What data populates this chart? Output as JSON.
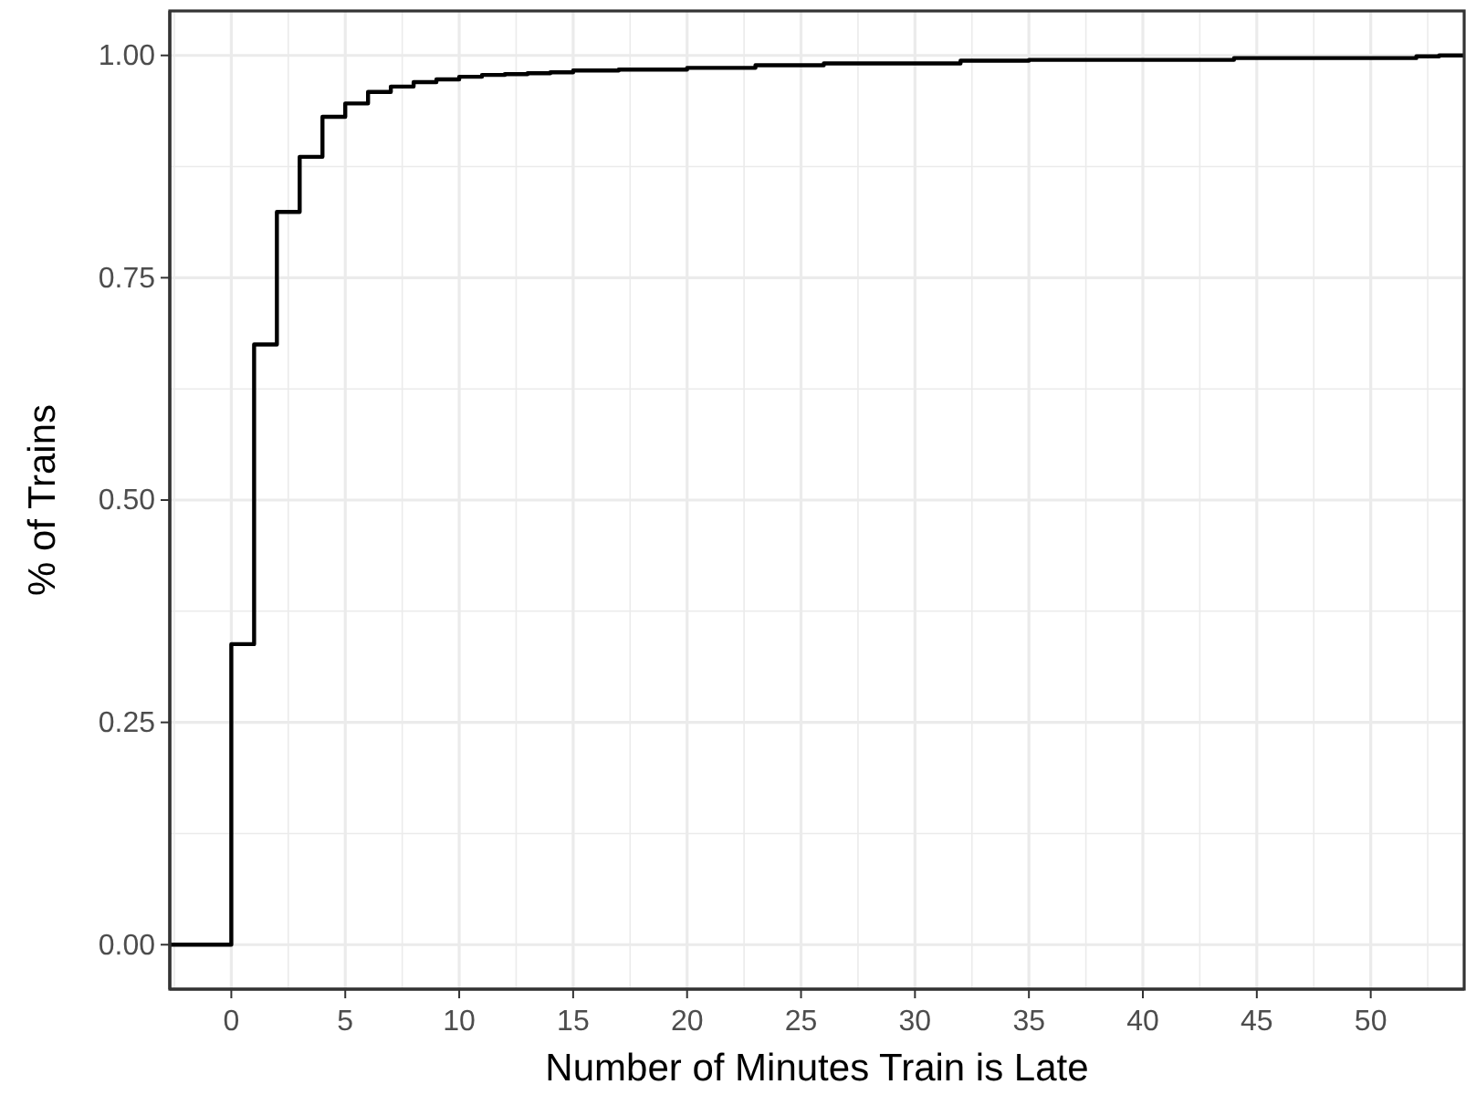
{
  "chart_data": {
    "type": "step",
    "xlabel": "Number of Minutes Train is Late",
    "ylabel": "% of Trains",
    "x": [
      -2.7,
      0,
      1,
      2,
      3,
      4,
      5,
      6,
      7,
      8,
      9,
      10,
      11,
      12,
      13,
      14,
      15,
      17,
      20,
      23,
      26,
      32,
      35,
      44,
      52,
      53,
      54.1
    ],
    "series": [
      {
        "color": "#000000",
        "values": [
          0,
          0.338,
          0.675,
          0.824,
          0.886,
          0.931,
          0.946,
          0.959,
          0.965,
          0.97,
          0.973,
          0.976,
          0.978,
          0.979,
          0.98,
          0.981,
          0.983,
          0.984,
          0.986,
          0.989,
          0.991,
          0.994,
          0.995,
          0.997,
          0.999,
          1.0,
          1.0
        ]
      }
    ],
    "xlim": [
      -2.7,
      54.1
    ],
    "xticks": [
      0,
      5,
      10,
      15,
      20,
      25,
      30,
      35,
      40,
      45,
      50
    ],
    "ylim": [
      -0.05,
      1.05
    ],
    "yticks": [
      {
        "value": 0,
        "label": "0.00"
      },
      {
        "value": 0.25,
        "label": "0.25"
      },
      {
        "value": 0.5,
        "label": "0.50"
      },
      {
        "value": 0.75,
        "label": "0.75"
      },
      {
        "value": 1,
        "label": "1.00"
      }
    ],
    "grid": true,
    "line_style": "solid"
  }
}
